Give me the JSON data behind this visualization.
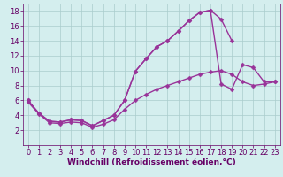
{
  "background_color": "#d4eeee",
  "grid_color": "#aacccc",
  "line_color": "#993399",
  "marker": "D",
  "markersize": 2.5,
  "linewidth": 1.0,
  "xlabel": "Windchill (Refroidissement éolien,°C)",
  "xlabel_fontsize": 6.5,
  "tick_fontsize": 6.0,
  "xlim": [
    -0.5,
    23.5
  ],
  "ylim": [
    0,
    19
  ],
  "yticks": [
    2,
    4,
    6,
    8,
    10,
    12,
    14,
    16,
    18
  ],
  "xticks": [
    0,
    1,
    2,
    3,
    4,
    5,
    6,
    7,
    8,
    9,
    10,
    11,
    12,
    13,
    14,
    15,
    16,
    17,
    18,
    19,
    20,
    21,
    22,
    23
  ],
  "series": [
    {
      "x": [
        0,
        1,
        2,
        3,
        4,
        5,
        6,
        7,
        8,
        9,
        10,
        11,
        12,
        13,
        14,
        15,
        16,
        17,
        18,
        19,
        20,
        21,
        22
      ],
      "y": [
        6.0,
        4.3,
        3.2,
        3.1,
        3.4,
        3.3,
        2.6,
        3.3,
        4.0,
        6.0,
        9.9,
        11.6,
        13.2,
        14.0,
        15.3,
        16.7,
        17.8,
        18.1,
        16.9,
        14.0,
        null,
        null,
        null
      ]
    },
    {
      "x": [
        0,
        1,
        2,
        3,
        4,
        5,
        6,
        7,
        8,
        9,
        10,
        11,
        12,
        13,
        14,
        15,
        16,
        17,
        18,
        19,
        20,
        21,
        22,
        23
      ],
      "y": [
        6.0,
        4.3,
        3.2,
        3.1,
        3.4,
        3.3,
        2.6,
        3.3,
        4.0,
        6.0,
        9.9,
        11.6,
        13.2,
        14.0,
        15.3,
        16.7,
        17.8,
        18.1,
        8.2,
        7.5,
        10.8,
        10.4,
        8.5,
        8.5
      ]
    },
    {
      "x": [
        0,
        1,
        2,
        3,
        4,
        5,
        6,
        7,
        8,
        9,
        10,
        11,
        12,
        13,
        14,
        15,
        16,
        17,
        18,
        19,
        20,
        21,
        22,
        23
      ],
      "y": [
        5.8,
        4.2,
        3.0,
        2.9,
        3.1,
        3.0,
        2.4,
        2.8,
        3.4,
        4.8,
        6.0,
        6.8,
        7.5,
        8.0,
        8.5,
        9.0,
        9.5,
        9.8,
        10.0,
        9.5,
        8.5,
        8.0,
        8.2,
        8.5
      ]
    }
  ]
}
